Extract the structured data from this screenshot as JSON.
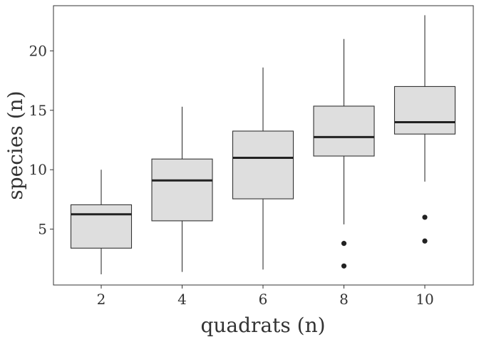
{
  "chart_data": {
    "type": "boxplot",
    "title": "",
    "xlabel": "quadrats (n)",
    "ylabel": "species (n)",
    "categories": [
      "2",
      "4",
      "6",
      "8",
      "10"
    ],
    "ylim": [
      0.3,
      23.8
    ],
    "yticks": [
      5,
      10,
      15,
      20
    ],
    "grid": false,
    "legend": "none",
    "colors": {
      "box_fill": "#DEDEDE",
      "line": "#333333",
      "median": "#222222",
      "outlier": "#222222",
      "panel_border": "#333333"
    },
    "boxes": [
      {
        "category": "2",
        "whisker_low": 1.2,
        "q1": 3.4,
        "median": 6.25,
        "q3": 7.05,
        "whisker_high": 10.0,
        "outliers": []
      },
      {
        "category": "4",
        "whisker_low": 1.4,
        "q1": 5.7,
        "median": 9.1,
        "q3": 10.9,
        "whisker_high": 15.3,
        "outliers": []
      },
      {
        "category": "6",
        "whisker_low": 1.6,
        "q1": 7.55,
        "median": 11.0,
        "q3": 13.25,
        "whisker_high": 18.6,
        "outliers": []
      },
      {
        "category": "8",
        "whisker_low": 5.4,
        "q1": 11.15,
        "median": 12.75,
        "q3": 15.35,
        "whisker_high": 21.0,
        "outliers": [
          3.8,
          1.9
        ]
      },
      {
        "category": "10",
        "whisker_low": 9.0,
        "q1": 13.0,
        "median": 14.0,
        "q3": 17.0,
        "whisker_high": 23.0,
        "outliers": [
          6.0,
          4.0
        ]
      }
    ]
  }
}
